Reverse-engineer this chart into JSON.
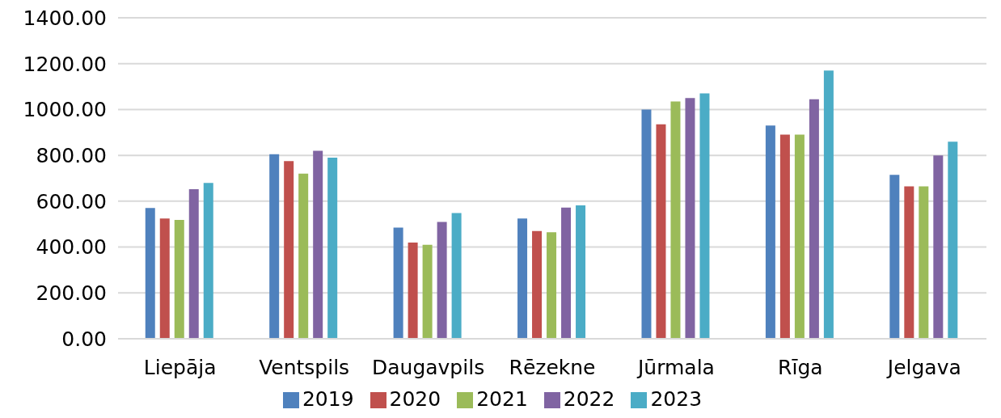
{
  "chart_data": {
    "type": "bar",
    "categories": [
      "Liepāja",
      "Ventspils",
      "Daugavpils",
      "Rēzekne",
      "Jūrmala",
      "Rīga",
      "Jelgava"
    ],
    "series": [
      {
        "name": "2019",
        "color": "#4f81bd",
        "values": [
          570,
          805,
          485,
          525,
          1000,
          930,
          715
        ]
      },
      {
        "name": "2020",
        "color": "#c0504d",
        "values": [
          525,
          775,
          420,
          470,
          935,
          890,
          665
        ]
      },
      {
        "name": "2021",
        "color": "#9bbb59",
        "values": [
          518,
          720,
          410,
          465,
          1035,
          890,
          665
        ]
      },
      {
        "name": "2022",
        "color": "#8064a2",
        "values": [
          652,
          820,
          510,
          572,
          1050,
          1045,
          800
        ]
      },
      {
        "name": "2023",
        "color": "#4bacc6",
        "values": [
          680,
          790,
          548,
          582,
          1070,
          1170,
          860
        ]
      }
    ],
    "ylim": [
      0,
      1400
    ],
    "yticks": [
      {
        "value": 0,
        "label": "0.00"
      },
      {
        "value": 200,
        "label": "200.00"
      },
      {
        "value": 400,
        "label": "400.00"
      },
      {
        "value": 600,
        "label": "600.00"
      },
      {
        "value": 800,
        "label": "800.00"
      },
      {
        "value": 1000,
        "label": "1000.00"
      },
      {
        "value": 1200,
        "label": "1200.00"
      },
      {
        "value": 1400,
        "label": "1400.00"
      }
    ],
    "grid": "y",
    "legend": "bottom"
  }
}
